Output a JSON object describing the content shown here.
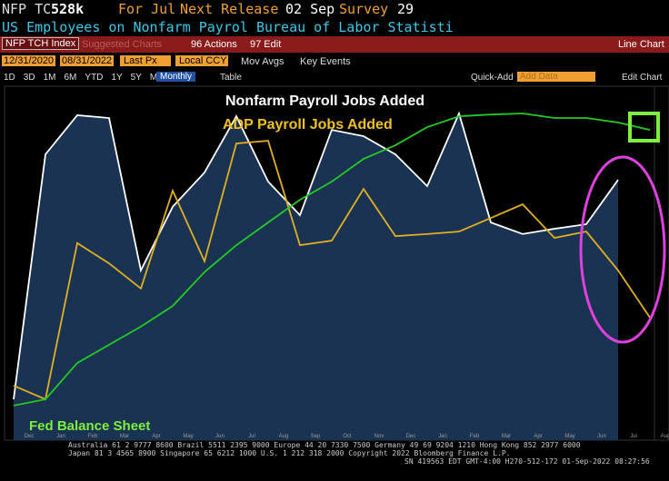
{
  "header": {
    "ticker": "NFP TC",
    "last": "528k",
    "period": "For Jul",
    "next_label": "Next Release",
    "next_date": "02 Sep",
    "survey_label": "Survey",
    "survey": "29",
    "description": "US Employees on Nonfarm Payrol Bureau of Labor Statisti"
  },
  "toolbar": {
    "security": "NFP TCH Index",
    "suggested": "Suggested Charts",
    "actions": "96 Actions",
    "edit": "97 Edit",
    "view": "Line Chart",
    "start": "12/31/2020",
    "end": "08/31/2022",
    "field": "Last Px",
    "currency": "Local CCY",
    "mov_avgs": "Mov Avgs",
    "key_events": "Key Events",
    "periods": [
      "1D",
      "3D",
      "1M",
      "6M",
      "YTD",
      "1Y",
      "5Y",
      "Max"
    ],
    "frequency": "Monthly",
    "table": "Table",
    "quick_add": "Quick-Add",
    "add_data": "Add Data",
    "edit_chart": "Edit Chart"
  },
  "footer": [
    "Australia 61 2 9777 8600 Brazil 5511 2395 9000 Europe 44 20 7330 7500 Germany 49 69 9204 1210 Hong Kong 852 2977 6000",
    "Japan 81 3 4565 8900 Singapore 65 6212 1000 U.S. 1 212 318 2000 Copyright 2022 Bloomberg Finance L.P.",
    "SN 419563 EDT GMT-4:00 H270-512-172 01-Sep-2022 08:27:56"
  ],
  "chart_data": {
    "type": "line",
    "annotations": [
      "Nonfarm Payroll Jobs Added",
      "ADP Payroll Jobs Added",
      "Fed Balance Sheet"
    ],
    "categories": [
      "Dec",
      "Jan",
      "Feb",
      "Mar",
      "Apr",
      "May",
      "Jun",
      "Jul",
      "Aug",
      "Sep",
      "Oct",
      "Nov",
      "Dec",
      "Jan",
      "Feb",
      "Mar",
      "Apr",
      "May",
      "Jun",
      "Jul",
      "Aug"
    ],
    "ylim": [
      0,
      100
    ],
    "series": [
      {
        "name": "Nonfarm Payroll Jobs Added",
        "color": "#ffffff",
        "area": "#1b3352",
        "values": [
          11.7,
          81.8,
          93,
          92.2,
          48.6,
          66.8,
          76.6,
          92.7,
          74,
          64.4,
          88.8,
          87,
          81.8,
          72.7,
          93.5,
          62.3,
          59,
          60.5,
          61.8,
          74.5,
          null
        ]
      },
      {
        "name": "ADP Payroll Jobs Added",
        "color": "#e0b020",
        "values": [
          15.6,
          11.7,
          56.4,
          50.6,
          43.4,
          71.4,
          51.2,
          84.9,
          85.7,
          55.8,
          57.1,
          71.9,
          58.4,
          59,
          59.7,
          63.6,
          67.5,
          57.9,
          59.7,
          48.6,
          35.1
        ]
      },
      {
        "name": "Fed Balance Sheet",
        "color": "#22cc22",
        "values": [
          9.9,
          11.7,
          22.1,
          27.3,
          32.5,
          38.4,
          48.1,
          55.8,
          62.3,
          68.8,
          74,
          80.5,
          84.4,
          89.6,
          92.7,
          93.2,
          93.5,
          92.2,
          92.2,
          90.9,
          88.8
        ]
      }
    ]
  }
}
